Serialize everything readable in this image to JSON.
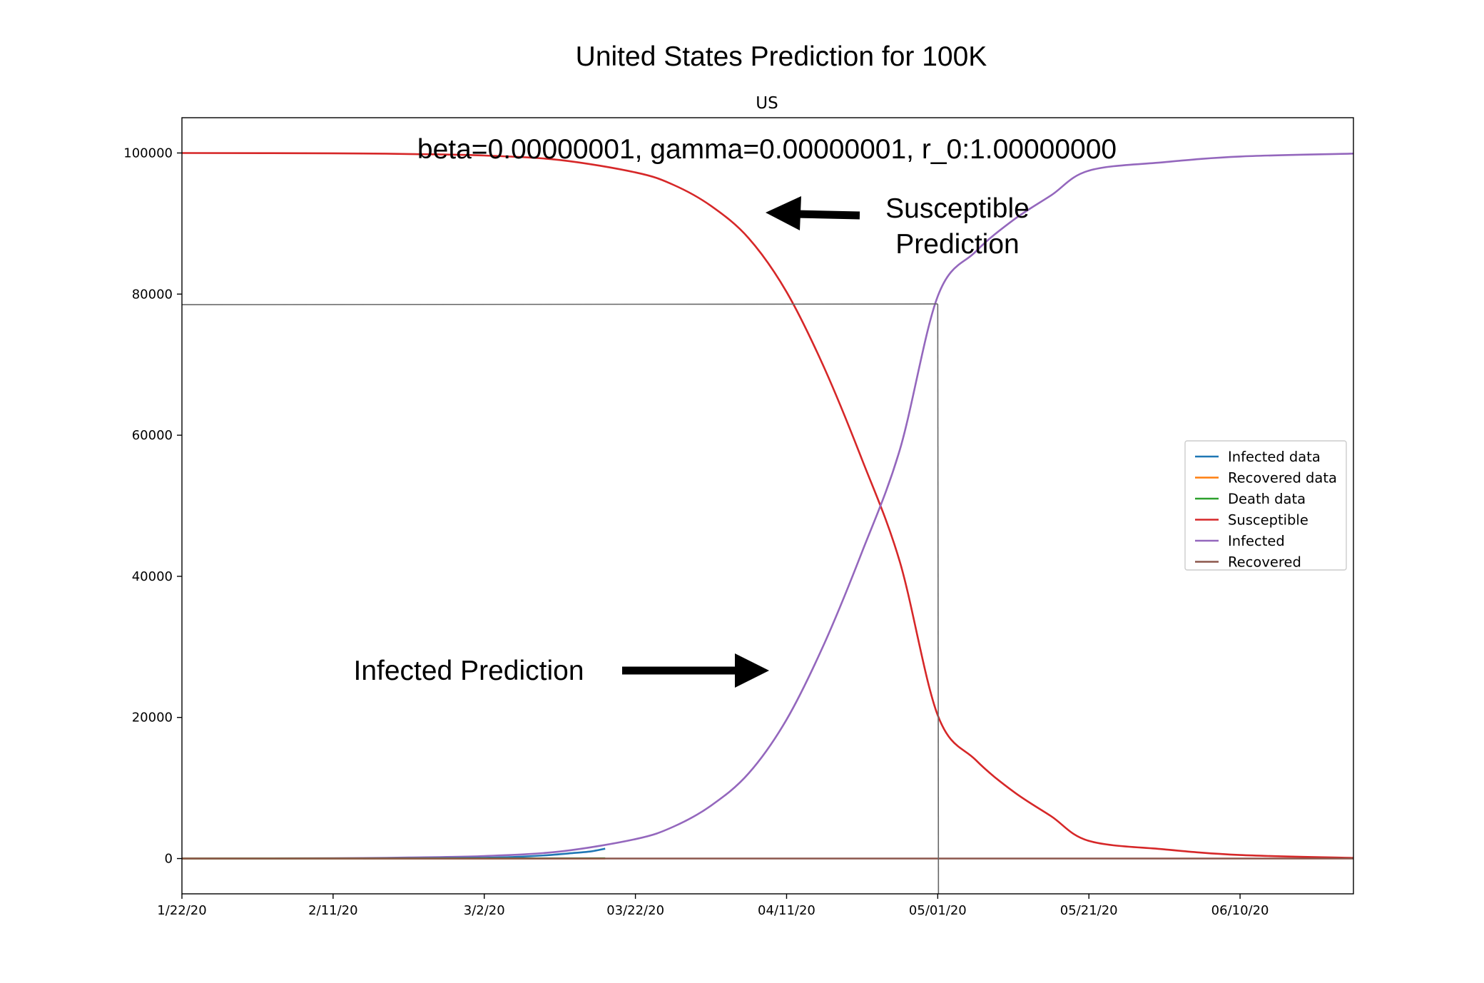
{
  "chart_data": {
    "type": "line",
    "figure_title": "United States Prediction for 100K",
    "title": "US",
    "annotation_params": "beta=0.00000001, gamma=0.00000001, r_0:1.00000000",
    "annotation_susceptible": [
      "Susceptible",
      "Prediction"
    ],
    "annotation_infected": "Infected Prediction",
    "xlabel": "",
    "ylabel": "",
    "x_ticks": [
      "1/22/20",
      "2/11/20",
      "3/2/20",
      "03/22/20",
      "04/11/20",
      "05/01/20",
      "05/21/20",
      "06/10/20"
    ],
    "y_ticks": [
      0,
      20000,
      40000,
      60000,
      80000,
      100000
    ],
    "xlim": [
      "2020-01-22",
      "2020-06-25"
    ],
    "ylim": [
      -5000,
      105000
    ],
    "grid": false,
    "legend_position": "center-right",
    "guide_lines": {
      "date": "2020-05-01",
      "value": 78500
    },
    "series": [
      {
        "name": "Infected data",
        "color": "#1f77b4",
        "points": [
          [
            "2020-02-15",
            20
          ],
          [
            "2020-03-01",
            100
          ],
          [
            "2020-03-06",
            230
          ],
          [
            "2020-03-10",
            450
          ],
          [
            "2020-03-14",
            800
          ],
          [
            "2020-03-16",
            1000
          ],
          [
            "2020-03-18",
            1400
          ]
        ]
      },
      {
        "name": "Recovered data",
        "color": "#ff7f0e",
        "points": [
          [
            "2020-01-22",
            0
          ],
          [
            "2020-03-18",
            10
          ]
        ]
      },
      {
        "name": "Death data",
        "color": "#2ca02c",
        "points": [
          [
            "2020-01-22",
            0
          ],
          [
            "2020-03-18",
            30
          ]
        ]
      },
      {
        "name": "Susceptible",
        "color": "#d62728",
        "points": [
          [
            "2020-01-22",
            99999
          ],
          [
            "2020-02-11",
            99950
          ],
          [
            "2020-02-21",
            99850
          ],
          [
            "2020-03-02",
            99640
          ],
          [
            "2020-03-12",
            99000
          ],
          [
            "2020-03-22",
            97250
          ],
          [
            "2020-03-27",
            95500
          ],
          [
            "2020-04-01",
            92500
          ],
          [
            "2020-04-06",
            87900
          ],
          [
            "2020-04-11",
            80300
          ],
          [
            "2020-04-16",
            69500
          ],
          [
            "2020-04-21",
            56500
          ],
          [
            "2020-04-26",
            42000
          ],
          [
            "2020-05-01",
            20300
          ],
          [
            "2020-05-06",
            14000
          ],
          [
            "2020-05-11",
            9500
          ],
          [
            "2020-05-16",
            6000
          ],
          [
            "2020-05-21",
            2500
          ],
          [
            "2020-05-31",
            1300
          ],
          [
            "2020-06-10",
            500
          ],
          [
            "2020-06-25",
            90
          ]
        ]
      },
      {
        "name": "Infected",
        "color": "#9467bd",
        "points": [
          [
            "2020-01-22",
            1
          ],
          [
            "2020-02-11",
            50
          ],
          [
            "2020-02-21",
            150
          ],
          [
            "2020-03-02",
            360
          ],
          [
            "2020-03-12",
            1000
          ],
          [
            "2020-03-22",
            2750
          ],
          [
            "2020-03-27",
            4500
          ],
          [
            "2020-04-01",
            7500
          ],
          [
            "2020-04-06",
            12100
          ],
          [
            "2020-04-11",
            19700
          ],
          [
            "2020-04-16",
            30500
          ],
          [
            "2020-04-21",
            43500
          ],
          [
            "2020-04-26",
            58000
          ],
          [
            "2020-05-01",
            79700
          ],
          [
            "2020-05-06",
            86000
          ],
          [
            "2020-05-11",
            90500
          ],
          [
            "2020-05-16",
            94000
          ],
          [
            "2020-05-21",
            97500
          ],
          [
            "2020-05-31",
            98700
          ],
          [
            "2020-06-10",
            99500
          ],
          [
            "2020-06-25",
            99910
          ]
        ]
      },
      {
        "name": "Recovered",
        "color": "#8c564b",
        "points": [
          [
            "2020-01-22",
            0
          ],
          [
            "2020-06-25",
            0
          ]
        ]
      }
    ]
  }
}
